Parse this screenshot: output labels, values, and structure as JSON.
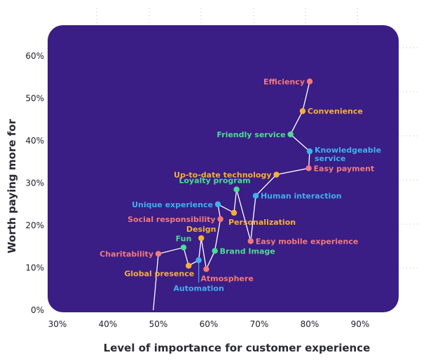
{
  "chart_data": {
    "type": "scatter",
    "title": "",
    "xlabel": "Level of importance for customer experience",
    "ylabel": "Worth paying more for",
    "xlim": [
      0.3,
      0.95
    ],
    "ylim": [
      0.0,
      0.65
    ],
    "xticks": [
      0.3,
      0.4,
      0.5,
      0.6,
      0.7,
      0.8,
      0.9
    ],
    "xtick_labels": [
      "30%",
      "40%",
      "50%",
      "60%",
      "70%",
      "80%",
      "90%"
    ],
    "yticks": [
      0.0,
      0.1,
      0.2,
      0.3,
      0.4,
      0.5,
      0.6
    ],
    "ytick_labels": [
      "0%",
      "10%",
      "20%",
      "30%",
      "40%",
      "50%",
      "60%"
    ],
    "grid": false,
    "background_color": "#3a1d85",
    "line_color": "#ffffff",
    "category_colors": {
      "salmon": "#f47a7a",
      "orange": "#f7b036",
      "green": "#4ddc93",
      "blue": "#3fb1ef"
    },
    "points": [
      {
        "label": "",
        "x": 0.49,
        "y": 0.0,
        "color": "none"
      },
      {
        "label": "Charitability",
        "x": 0.5,
        "y": 0.133,
        "color": "salmon",
        "anchor": "left"
      },
      {
        "label": "Fun",
        "x": 0.55,
        "y": 0.148,
        "color": "green",
        "anchor": "above"
      },
      {
        "label": "Global presence",
        "x": 0.56,
        "y": 0.105,
        "color": "orange",
        "anchor": "left-below"
      },
      {
        "label": "Automation",
        "x": 0.58,
        "y": 0.118,
        "color": "blue",
        "anchor": "below"
      },
      {
        "label": "Design",
        "x": 0.585,
        "y": 0.17,
        "color": "orange",
        "anchor": "above"
      },
      {
        "label": "Atmosphere",
        "x": 0.595,
        "y": 0.097,
        "color": "salmon",
        "anchor": "right-below"
      },
      {
        "label": "Brand Image",
        "x": 0.612,
        "y": 0.14,
        "color": "green",
        "anchor": "right"
      },
      {
        "label": "Social responsibility",
        "x": 0.623,
        "y": 0.215,
        "color": "salmon",
        "anchor": "left"
      },
      {
        "label": "Unique experience",
        "x": 0.618,
        "y": 0.25,
        "color": "blue",
        "anchor": "left"
      },
      {
        "label": "Personalization",
        "x": 0.65,
        "y": 0.23,
        "color": "orange",
        "anchor": "right-below"
      },
      {
        "label": "Loyalty program",
        "x": 0.655,
        "y": 0.285,
        "color": "green",
        "anchor": "left-above"
      },
      {
        "label": "Easy mobile experience",
        "x": 0.683,
        "y": 0.163,
        "color": "salmon",
        "anchor": "right"
      },
      {
        "label": "Human interaction",
        "x": 0.693,
        "y": 0.27,
        "color": "blue",
        "anchor": "right"
      },
      {
        "label": "Up-to-date technology",
        "x": 0.734,
        "y": 0.32,
        "color": "orange",
        "anchor": "left"
      },
      {
        "label": "Easy payment",
        "x": 0.798,
        "y": 0.335,
        "color": "salmon",
        "anchor": "right"
      },
      {
        "label": "Knowledgeable service",
        "x": 0.8,
        "y": 0.375,
        "color": "blue",
        "anchor": "right-multiline"
      },
      {
        "label": "Friendly service",
        "x": 0.762,
        "y": 0.415,
        "color": "green",
        "anchor": "left"
      },
      {
        "label": "Convenience",
        "x": 0.786,
        "y": 0.47,
        "color": "orange",
        "anchor": "right"
      },
      {
        "label": "Efficiency",
        "x": 0.8,
        "y": 0.54,
        "color": "salmon",
        "anchor": "left"
      }
    ]
  }
}
